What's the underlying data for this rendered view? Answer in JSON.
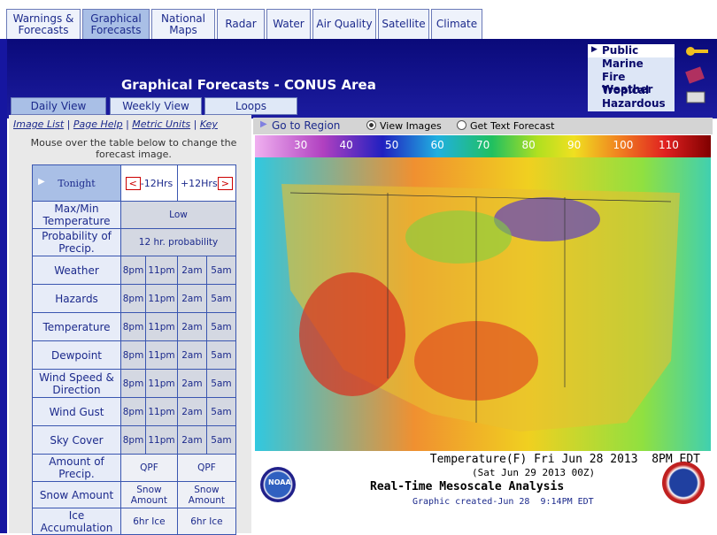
{
  "tabs": [
    "Warnings & Forecasts",
    "Graphical Forecasts",
    "National Maps",
    "Radar",
    "Water",
    "Air Quality",
    "Satellite",
    "Climate"
  ],
  "side_menu": [
    "Public",
    "Marine",
    "Fire Weather",
    "Tropical",
    "Hazardous"
  ],
  "header": {
    "title": "Graphical Forecasts - CONUS Area"
  },
  "view_tabs": [
    "Daily View",
    "Weekly View",
    "Loops"
  ],
  "links": [
    "Image List",
    "Page Help",
    "Metric Units",
    "Key"
  ],
  "instruction": "Mouse over the table below to change the forecast image.",
  "table": {
    "period": "Tonight",
    "prev": "-12Hrs",
    "next": "+12Hrs",
    "rows": [
      {
        "label": "Max/Min Temperature",
        "cells": [
          "Low"
        ]
      },
      {
        "label": "Probability of Precip.",
        "cells": [
          "12 hr. probability"
        ]
      },
      {
        "label": "Weather",
        "cells": [
          "8pm",
          "11pm",
          "2am",
          "5am"
        ]
      },
      {
        "label": "Hazards",
        "cells": [
          "8pm",
          "11pm",
          "2am",
          "5am"
        ]
      },
      {
        "label": "Temperature",
        "cells": [
          "8pm",
          "11pm",
          "2am",
          "5am"
        ]
      },
      {
        "label": "Dewpoint",
        "cells": [
          "8pm",
          "11pm",
          "2am",
          "5am"
        ]
      },
      {
        "label": "Wind Speed & Direction",
        "cells": [
          "8pm",
          "11pm",
          "2am",
          "5am"
        ]
      },
      {
        "label": "Wind Gust",
        "cells": [
          "8pm",
          "11pm",
          "2am",
          "5am"
        ]
      },
      {
        "label": "Sky Cover",
        "cells": [
          "8pm",
          "11pm",
          "2am",
          "5am"
        ]
      },
      {
        "label": "Amount of Precip.",
        "cells": [
          "QPF",
          "QPF"
        ]
      },
      {
        "label": "Snow Amount",
        "cells": [
          "Snow Amount",
          "Snow Amount"
        ]
      },
      {
        "label": "Ice Accumulation",
        "cells": [
          "6hr Ice",
          "6hr Ice"
        ]
      }
    ]
  },
  "map_controls": {
    "region": "Go to Region",
    "view_images": "View Images",
    "text_forecast": "Get Text Forecast"
  },
  "scale": [
    "30",
    "40",
    "50",
    "60",
    "70",
    "80",
    "90",
    "100",
    "110"
  ],
  "caption": {
    "line1": "Temperature(F) Fri Jun 28 2013  8PM EDT",
    "line2": "(Sat Jun 29 2013 00Z)",
    "title": "Real-Time Mesoscale Analysis",
    "created": "Graphic created-Jun 28  9:14PM EDT",
    "logo": "NOAA"
  }
}
